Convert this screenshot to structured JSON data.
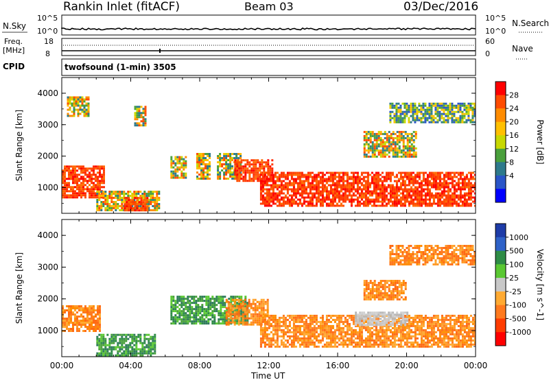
{
  "header": {
    "station": "Rankin Inlet (fitACF)",
    "beam": "Beam 03",
    "date": "03/Dec/2016"
  },
  "top_strips": {
    "nsky": {
      "label": "N.Sky",
      "left_ticks": [
        "10^5",
        "10^0"
      ],
      "right_ticks": [
        "10^5",
        "10^0"
      ],
      "right_label": "N.Search"
    },
    "freq": {
      "label_line1": "Freq.",
      "label_line2": "[MHz]",
      "left_ticks": [
        "18",
        "8"
      ],
      "right_ticks": [
        "60",
        "0"
      ],
      "right_label": "Nave"
    },
    "cpid": {
      "label": "CPID",
      "value": "twofsound (1-min) 3505"
    }
  },
  "chart_data": [
    {
      "type": "heatmap",
      "name": "power-panel",
      "ylabel": "Slant Range [km]",
      "xlabel": "",
      "x_ticks": [
        "00:00",
        "04:00",
        "08:00",
        "12:00",
        "16:00",
        "20:00",
        "00:00"
      ],
      "y_ticks": [
        "1000",
        "2000",
        "3000",
        "4000"
      ],
      "ylim": [
        180,
        4500
      ],
      "colorbar": {
        "label": "Power [dB]",
        "ticks": [
          "28",
          "24",
          "20",
          "16",
          "12",
          "8",
          "4"
        ],
        "colors": [
          "#ff0000",
          "#ff4c00",
          "#ff8c00",
          "#ffc000",
          "#c8d800",
          "#4aa03c",
          "#2e7a8c",
          "#2a55c8",
          "#0000ff"
        ]
      },
      "regions": [
        {
          "t0": 0.0,
          "t1": 2.4,
          "r0": 700,
          "r1": 1700,
          "value": "high"
        },
        {
          "t0": 2.0,
          "t1": 5.6,
          "r0": 250,
          "r1": 900,
          "value": "mid"
        },
        {
          "t0": 3.6,
          "t1": 5.0,
          "r0": 300,
          "r1": 700,
          "value": "high"
        },
        {
          "t0": 6.3,
          "t1": 7.2,
          "r0": 1300,
          "r1": 2000,
          "value": "mid"
        },
        {
          "t0": 7.8,
          "t1": 8.6,
          "r0": 1300,
          "r1": 2100,
          "value": "mid"
        },
        {
          "t0": 9.0,
          "t1": 10.4,
          "r0": 1300,
          "r1": 2100,
          "value": "mid"
        },
        {
          "t0": 10.0,
          "t1": 12.2,
          "r0": 1200,
          "r1": 1900,
          "value": "high"
        },
        {
          "t0": 11.5,
          "t1": 24.0,
          "r0": 450,
          "r1": 1500,
          "value": "high"
        },
        {
          "t0": 17.5,
          "t1": 20.5,
          "r0": 2000,
          "r1": 2800,
          "value": "mid"
        },
        {
          "t0": 19.0,
          "t1": 24.0,
          "r0": 3100,
          "r1": 3700,
          "value": "low"
        },
        {
          "t0": 0.3,
          "t1": 1.5,
          "r0": 3300,
          "r1": 3900,
          "value": "mid"
        },
        {
          "t0": 4.2,
          "t1": 4.8,
          "r0": 3000,
          "r1": 3600,
          "value": "mid"
        }
      ]
    },
    {
      "type": "heatmap",
      "name": "velocity-panel",
      "ylabel": "Slant Range [km]",
      "xlabel": "Time UT",
      "x_ticks": [
        "00:00",
        "04:00",
        "08:00",
        "12:00",
        "16:00",
        "20:00",
        "00:00"
      ],
      "y_ticks": [
        "1000",
        "2000",
        "3000",
        "4000"
      ],
      "ylim": [
        180,
        4500
      ],
      "colorbar": {
        "label": "Velocity [m s^-1]",
        "ticks": [
          "1000",
          "500",
          "100",
          "25",
          "-25",
          "-100",
          "-500",
          "-1000"
        ],
        "colors": [
          "#1e3ca8",
          "#2e62c8",
          "#2e8c46",
          "#5ac832",
          "#c8c8c8",
          "#ffaa32",
          "#ff7a1e",
          "#ff3c00",
          "#ff0000"
        ]
      },
      "regions": [
        {
          "t0": 0.0,
          "t1": 2.2,
          "r0": 1000,
          "r1": 1800,
          "value": "neg"
        },
        {
          "t0": 2.0,
          "t1": 5.4,
          "r0": 200,
          "r1": 900,
          "value": "pos"
        },
        {
          "t0": 6.3,
          "t1": 10.8,
          "r0": 1200,
          "r1": 2100,
          "value": "pos"
        },
        {
          "t0": 9.5,
          "t1": 12.0,
          "r0": 1200,
          "r1": 2000,
          "value": "neg"
        },
        {
          "t0": 11.5,
          "t1": 24.0,
          "r0": 500,
          "r1": 1500,
          "value": "neg"
        },
        {
          "t0": 17.0,
          "t1": 20.0,
          "r0": 1200,
          "r1": 1600,
          "value": "zero"
        },
        {
          "t0": 17.5,
          "t1": 20.0,
          "r0": 2000,
          "r1": 2600,
          "value": "neg"
        },
        {
          "t0": 19.0,
          "t1": 24.0,
          "r0": 3100,
          "r1": 3700,
          "value": "neg"
        }
      ]
    }
  ]
}
